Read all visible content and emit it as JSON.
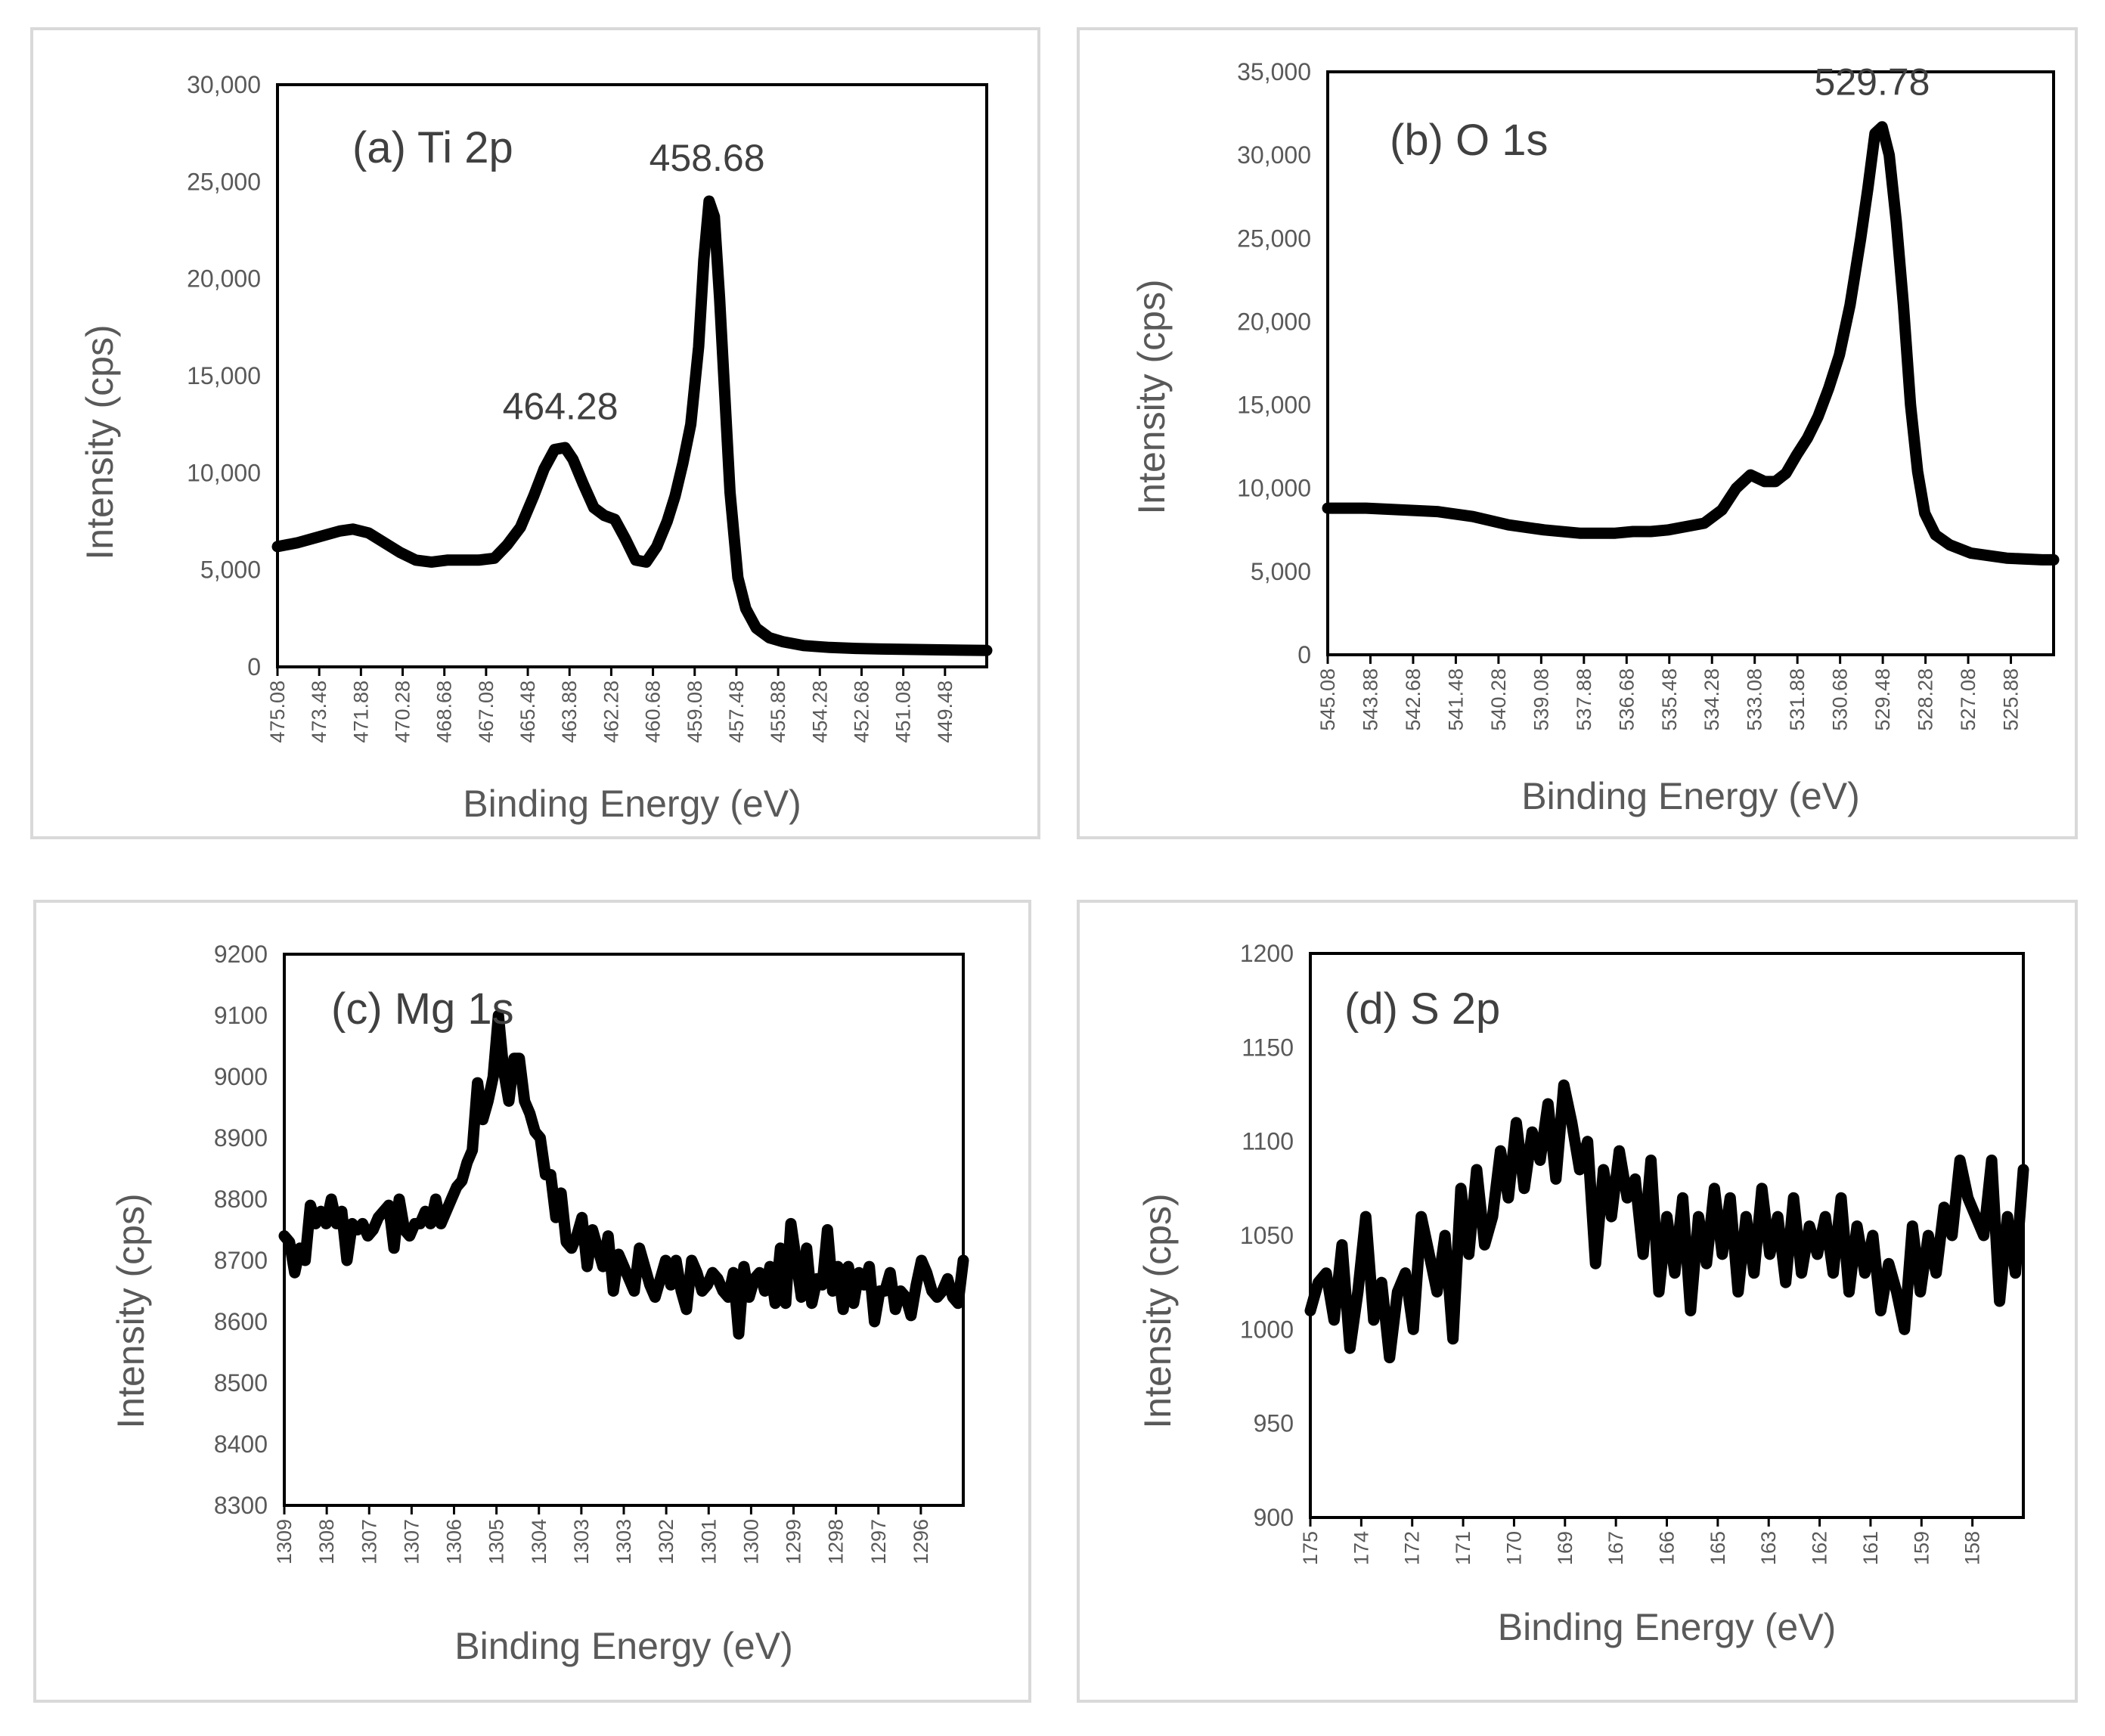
{
  "chart_data": [
    {
      "type": "line",
      "id": "a",
      "title": "(a) Ti 2p",
      "xlabel": "Binding Energy (eV)",
      "ylabel": "Intensity (cps)",
      "xlim": [
        475.08,
        448.0
      ],
      "ylim": [
        0,
        30000
      ],
      "yticks": [
        0,
        5000,
        10000,
        15000,
        20000,
        25000,
        30000
      ],
      "ytick_labels": [
        "0",
        "5,000",
        "10,000",
        "15,000",
        "20,000",
        "25,000",
        "30,000"
      ],
      "xtick_labels": [
        "475.08",
        "473.48",
        "471.88",
        "470.28",
        "468.68",
        "467.08",
        "465.48",
        "463.88",
        "462.28",
        "460.68",
        "459.08",
        "457.48",
        "455.88",
        "454.28",
        "452.68",
        "451.08",
        "449.48"
      ],
      "annotations": [
        {
          "text": "464.28",
          "x": 464.28,
          "y": 11200
        },
        {
          "text": "458.68",
          "x": 458.68,
          "y": 24000
        }
      ],
      "x": [
        475.08,
        474.3,
        473.5,
        472.7,
        472.2,
        471.6,
        471.0,
        470.4,
        469.8,
        469.2,
        468.6,
        468.0,
        467.4,
        466.8,
        466.3,
        465.8,
        465.3,
        464.9,
        464.5,
        464.1,
        463.8,
        463.4,
        463.0,
        462.6,
        462.2,
        461.8,
        461.4,
        461.0,
        460.6,
        460.2,
        459.9,
        459.6,
        459.3,
        459.0,
        458.8,
        458.6,
        458.4,
        458.2,
        458.0,
        457.8,
        457.5,
        457.2,
        456.8,
        456.3,
        455.8,
        455.0,
        454.0,
        453.0,
        452.0,
        451.0,
        450.0,
        449.0,
        448.0
      ],
      "y": [
        6200,
        6400,
        6700,
        7000,
        7100,
        6900,
        6400,
        5900,
        5500,
        5400,
        5500,
        5500,
        5500,
        5600,
        6300,
        7200,
        8800,
        10200,
        11200,
        11300,
        10700,
        9400,
        8200,
        7800,
        7600,
        6600,
        5500,
        5400,
        6200,
        7500,
        8800,
        10500,
        12500,
        16500,
        21000,
        24000,
        23200,
        19000,
        14000,
        9000,
        4600,
        3000,
        2000,
        1500,
        1300,
        1100,
        1000,
        950,
        920,
        900,
        880,
        860,
        850
      ]
    },
    {
      "type": "line",
      "id": "b",
      "title": "(b) O 1s",
      "xlabel": "Binding Energy (eV)",
      "ylabel": "Intensity (cps)",
      "xlim": [
        545.08,
        524.68
      ],
      "ylim": [
        0,
        35000
      ],
      "yticks": [
        0,
        5000,
        10000,
        15000,
        20000,
        25000,
        30000,
        35000
      ],
      "ytick_labels": [
        "0",
        "5,000",
        "10,000",
        "15,000",
        "20,000",
        "25,000",
        "30,000",
        "35,000"
      ],
      "xtick_labels": [
        "545.08",
        "543.88",
        "542.68",
        "541.48",
        "540.28",
        "539.08",
        "537.88",
        "536.68",
        "535.48",
        "534.28",
        "533.08",
        "531.88",
        "530.68",
        "529.48",
        "528.28",
        "527.08",
        "525.88"
      ],
      "annotations": [
        {
          "text": "529.78",
          "x": 529.78,
          "y": 31800
        }
      ],
      "x": [
        545.08,
        544.0,
        543.0,
        542.0,
        541.0,
        540.0,
        539.0,
        538.0,
        537.5,
        537.0,
        536.5,
        536.0,
        535.5,
        535.0,
        534.5,
        534.0,
        533.6,
        533.2,
        532.8,
        532.5,
        532.2,
        531.9,
        531.6,
        531.3,
        531.0,
        530.7,
        530.4,
        530.1,
        529.9,
        529.7,
        529.5,
        529.3,
        529.1,
        528.9,
        528.7,
        528.5,
        528.3,
        528.0,
        527.6,
        527.0,
        526.0,
        525.0,
        524.68
      ],
      "y": [
        8800,
        8800,
        8700,
        8600,
        8300,
        7800,
        7500,
        7300,
        7300,
        7300,
        7400,
        7400,
        7500,
        7700,
        7900,
        8700,
        10000,
        10800,
        10400,
        10400,
        10900,
        12000,
        13000,
        14300,
        16000,
        18000,
        21000,
        25000,
        28000,
        31300,
        31700,
        30000,
        26000,
        21000,
        15000,
        11000,
        8500,
        7200,
        6600,
        6100,
        5800,
        5700,
        5700
      ]
    },
    {
      "type": "line",
      "id": "c",
      "title": "(c) Mg 1s",
      "xlabel": "Binding Energy (eV)",
      "ylabel": "Intensity (cps)",
      "xlim": [
        1309,
        1296
      ],
      "ylim": [
        8300,
        9200
      ],
      "yticks": [
        8300,
        8400,
        8500,
        8600,
        8700,
        8800,
        8900,
        9000,
        9100,
        9200
      ],
      "ytick_labels": [
        "8300",
        "8400",
        "8500",
        "8600",
        "8700",
        "8800",
        "8900",
        "9000",
        "9100",
        "9200"
      ],
      "xtick_labels": [
        "1309",
        "1308",
        "1307",
        "1307",
        "1306",
        "1305",
        "1304",
        "1303",
        "1303",
        "1302",
        "1301",
        "1300",
        "1299",
        "1298",
        "1297",
        "1296"
      ],
      "x": [
        1309.0,
        1308.9,
        1308.8,
        1308.7,
        1308.6,
        1308.5,
        1308.4,
        1308.3,
        1308.2,
        1308.1,
        1308.0,
        1307.9,
        1307.8,
        1307.7,
        1307.6,
        1307.5,
        1307.4,
        1307.3,
        1307.2,
        1307.1,
        1307.0,
        1306.9,
        1306.8,
        1306.7,
        1306.6,
        1306.5,
        1306.4,
        1306.3,
        1306.2,
        1306.1,
        1306.0,
        1305.9,
        1305.8,
        1305.7,
        1305.6,
        1305.5,
        1305.4,
        1305.3,
        1305.2,
        1305.1,
        1305.0,
        1304.9,
        1304.8,
        1304.7,
        1304.6,
        1304.5,
        1304.4,
        1304.3,
        1304.2,
        1304.1,
        1304.0,
        1303.9,
        1303.8,
        1303.7,
        1303.6,
        1303.5,
        1303.4,
        1303.3,
        1303.2,
        1303.1,
        1303.0,
        1302.9,
        1302.8,
        1302.7,
        1302.6,
        1302.5,
        1302.4,
        1302.3,
        1302.2,
        1302.1,
        1302.0,
        1301.9,
        1301.8,
        1301.7,
        1301.6,
        1301.5,
        1301.4,
        1301.3,
        1301.2,
        1301.1,
        1301.0,
        1300.9,
        1300.8,
        1300.7,
        1300.6,
        1300.5,
        1300.4,
        1300.3,
        1300.2,
        1300.1,
        1300.0,
        1299.9,
        1299.8,
        1299.7,
        1299.6,
        1299.5,
        1299.4,
        1299.3,
        1299.2,
        1299.1,
        1299.0,
        1298.9,
        1298.8,
        1298.7,
        1298.6,
        1298.5,
        1298.4,
        1298.3,
        1298.2,
        1298.1,
        1298.0,
        1297.9,
        1297.8,
        1297.7,
        1297.6,
        1297.5,
        1297.4,
        1297.3,
        1297.2,
        1297.1,
        1297.0,
        1296.9,
        1296.8,
        1296.7,
        1296.6,
        1296.5,
        1296.4,
        1296.3,
        1296.2,
        1296.1,
        1296.0
      ],
      "y": [
        8740,
        8730,
        8680,
        8720,
        8700,
        8790,
        8760,
        8780,
        8760,
        8800,
        8760,
        8780,
        8700,
        8760,
        8750,
        8760,
        8740,
        8750,
        8770,
        8780,
        8790,
        8720,
        8800,
        8750,
        8740,
        8760,
        8760,
        8780,
        8760,
        8800,
        8760,
        8780,
        8800,
        8820,
        8830,
        8860,
        8880,
        8990,
        8930,
        8960,
        9000,
        9100,
        9010,
        8960,
        9030,
        9030,
        8960,
        8940,
        8910,
        8900,
        8840,
        8840,
        8770,
        8810,
        8730,
        8720,
        8740,
        8770,
        8690,
        8750,
        8720,
        8690,
        8740,
        8650,
        8710,
        8690,
        8670,
        8650,
        8720,
        8690,
        8660,
        8640,
        8670,
        8700,
        8660,
        8700,
        8650,
        8620,
        8700,
        8680,
        8650,
        8660,
        8680,
        8670,
        8650,
        8640,
        8680,
        8580,
        8690,
        8640,
        8670,
        8680,
        8650,
        8690,
        8630,
        8720,
        8630,
        8760,
        8700,
        8640,
        8720,
        8630,
        8670,
        8660,
        8750,
        8650,
        8690,
        8620,
        8690,
        8630,
        8680,
        8660,
        8690,
        8600,
        8650,
        8650,
        8680,
        8620,
        8650,
        8640,
        8610,
        8660,
        8700,
        8680,
        8650,
        8640,
        8650,
        8670,
        8640,
        8630,
        8700
      ]
    },
    {
      "type": "line",
      "id": "d",
      "title": "(d) S 2p",
      "xlabel": "Binding Energy (eV)",
      "ylabel": "Intensity (cps)",
      "xlim": [
        175,
        157
      ],
      "ylim": [
        900,
        1200
      ],
      "yticks": [
        900,
        950,
        1000,
        1050,
        1100,
        1150,
        1200
      ],
      "ytick_labels": [
        "900",
        "950",
        "1000",
        "1050",
        "1100",
        "1150",
        "1200"
      ],
      "xtick_labels": [
        "175",
        "174",
        "172",
        "171",
        "170",
        "169",
        "167",
        "166",
        "165",
        "163",
        "162",
        "161",
        "159",
        "158"
      ],
      "x": [
        175.0,
        174.8,
        174.6,
        174.4,
        174.2,
        174.0,
        173.8,
        173.6,
        173.4,
        173.2,
        173.0,
        172.8,
        172.6,
        172.4,
        172.2,
        172.0,
        171.8,
        171.6,
        171.4,
        171.2,
        171.0,
        170.8,
        170.6,
        170.4,
        170.2,
        170.0,
        169.8,
        169.6,
        169.4,
        169.2,
        169.0,
        168.8,
        168.6,
        168.4,
        168.2,
        168.0,
        167.8,
        167.6,
        167.4,
        167.2,
        167.0,
        166.8,
        166.6,
        166.4,
        166.2,
        166.0,
        165.8,
        165.6,
        165.4,
        165.2,
        165.0,
        164.8,
        164.6,
        164.4,
        164.2,
        164.0,
        163.8,
        163.6,
        163.4,
        163.2,
        163.0,
        162.8,
        162.6,
        162.4,
        162.2,
        162.0,
        161.8,
        161.6,
        161.4,
        161.2,
        161.0,
        160.8,
        160.6,
        160.4,
        160.2,
        160.0,
        159.8,
        159.6,
        159.4,
        159.2,
        159.0,
        158.8,
        158.6,
        158.4,
        158.2,
        158.0,
        157.8,
        157.6,
        157.4,
        157.2,
        157.0
      ],
      "y": [
        1010,
        1025,
        1030,
        1005,
        1045,
        990,
        1020,
        1060,
        1005,
        1025,
        985,
        1020,
        1030,
        1000,
        1060,
        1040,
        1020,
        1050,
        995,
        1075,
        1040,
        1085,
        1045,
        1060,
        1095,
        1070,
        1110,
        1075,
        1105,
        1090,
        1120,
        1080,
        1130,
        1110,
        1085,
        1100,
        1035,
        1085,
        1060,
        1095,
        1070,
        1080,
        1040,
        1090,
        1020,
        1060,
        1030,
        1070,
        1010,
        1060,
        1035,
        1075,
        1040,
        1070,
        1020,
        1060,
        1030,
        1075,
        1040,
        1060,
        1025,
        1070,
        1030,
        1055,
        1040,
        1060,
        1030,
        1070,
        1020,
        1055,
        1030,
        1050,
        1010,
        1035,
        1020,
        1000,
        1055,
        1020,
        1050,
        1030,
        1065,
        1050,
        1090,
        1070,
        1060,
        1050,
        1090,
        1015,
        1060,
        1030,
        1085
      ]
    }
  ]
}
